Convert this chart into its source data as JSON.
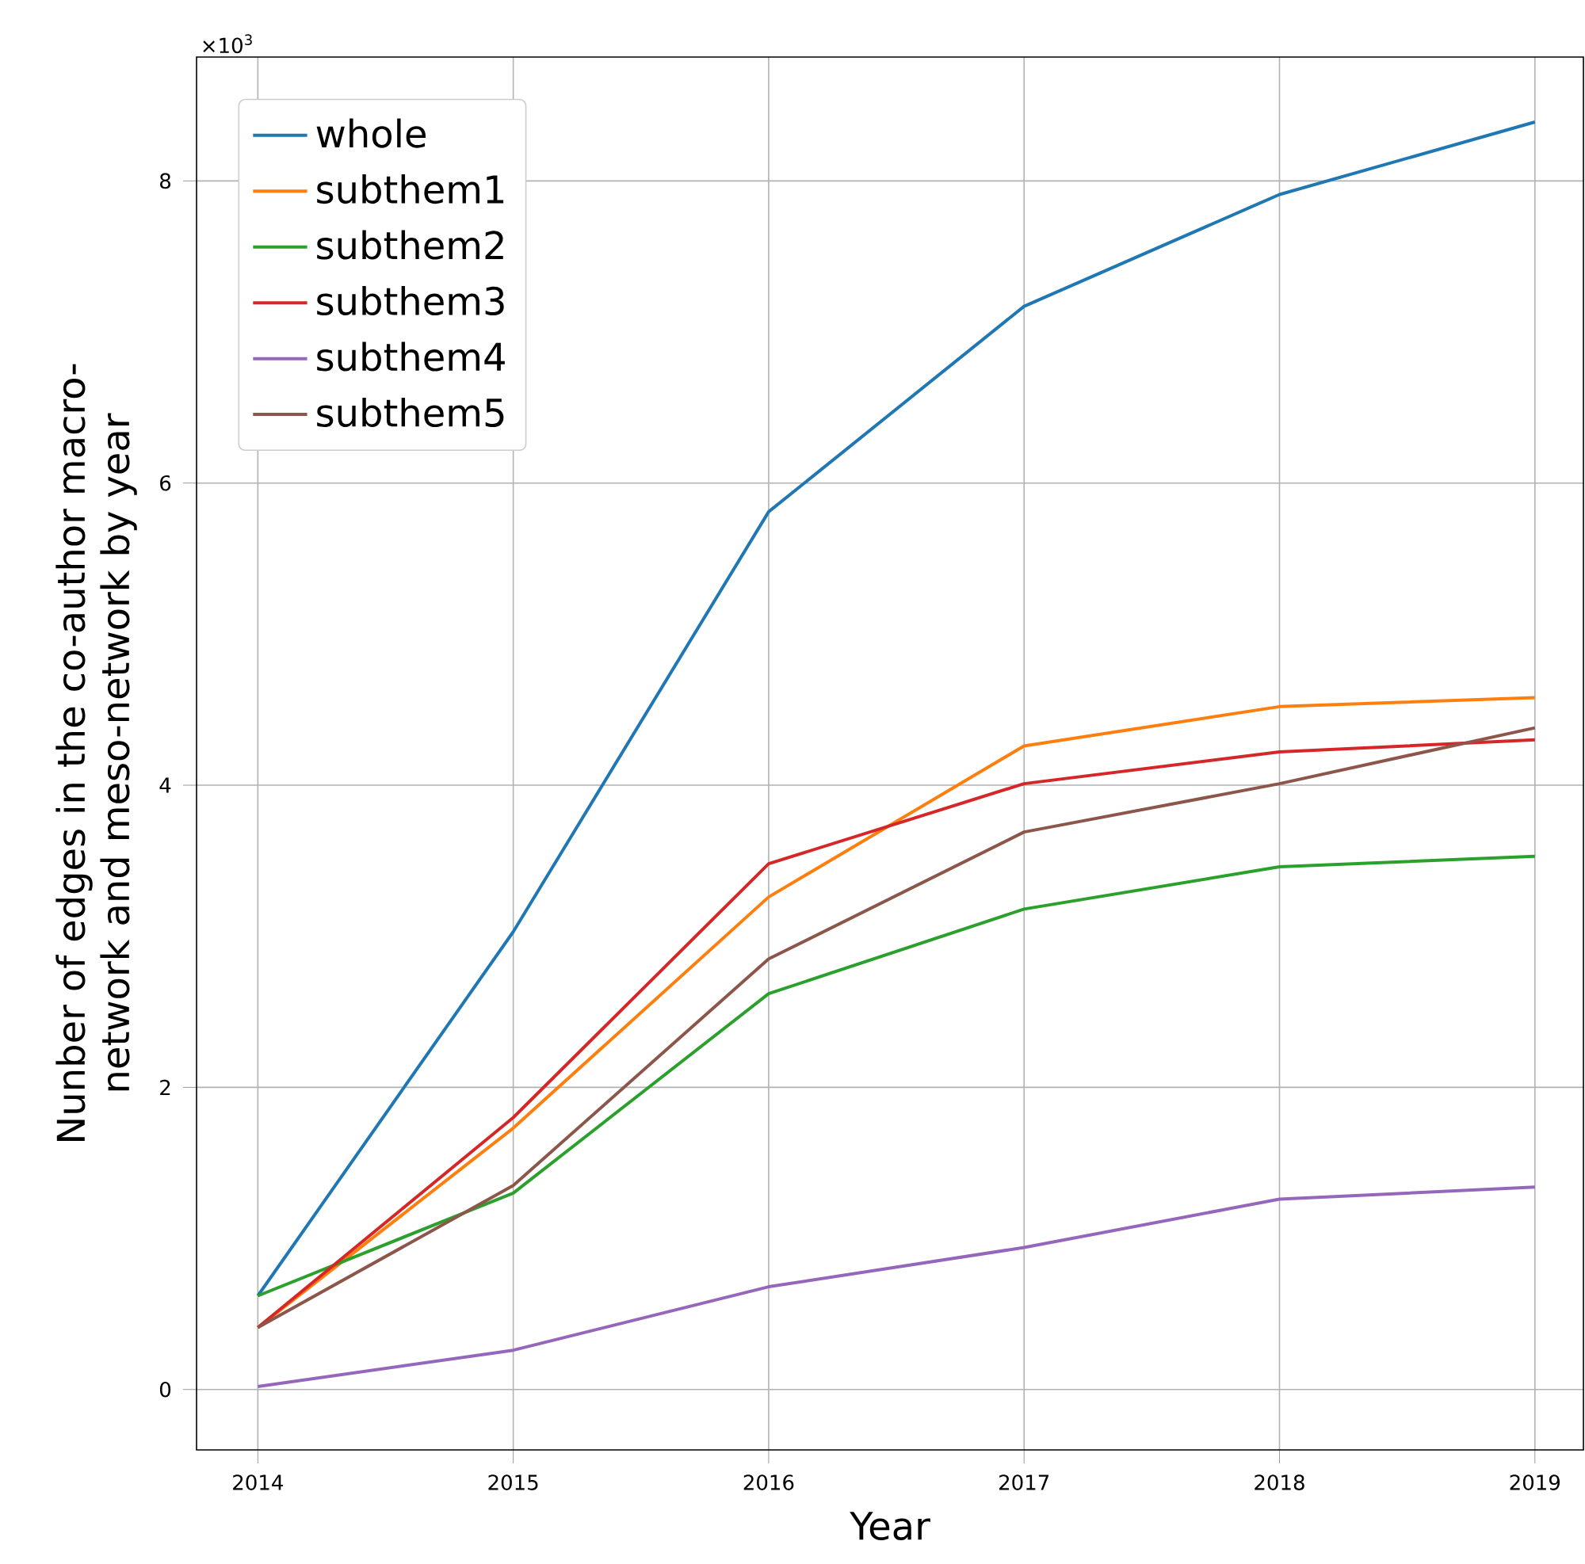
{
  "chart_data": {
    "type": "line",
    "xlabel": "Year",
    "ylabel": "Nunber of edges in the co-author macro-network and meso-network by year",
    "x": [
      2014,
      2015,
      2016,
      2017,
      2018,
      2019
    ],
    "series": [
      {
        "name": "whole",
        "color": "#1f77b4",
        "values": [
          0.62,
          3.03,
          5.81,
          7.17,
          7.91,
          8.39
        ]
      },
      {
        "name": "subthem1",
        "color": "#ff7f0e",
        "values": [
          0.41,
          1.73,
          3.26,
          4.26,
          4.52,
          4.58
        ]
      },
      {
        "name": "subthem2",
        "color": "#2ca02c",
        "values": [
          0.62,
          1.3,
          2.62,
          3.18,
          3.46,
          3.53
        ]
      },
      {
        "name": "subthem3",
        "color": "#d62728",
        "values": [
          0.41,
          1.8,
          3.48,
          4.01,
          4.22,
          4.3
        ]
      },
      {
        "name": "subthem4",
        "color": "#9467bd",
        "values": [
          0.02,
          0.26,
          0.68,
          0.94,
          1.26,
          1.34
        ]
      },
      {
        "name": "subthem5",
        "color": "#8c564b",
        "values": [
          0.41,
          1.35,
          2.85,
          3.69,
          4.01,
          4.38
        ]
      }
    ],
    "xlim": [
      2013.76,
      2019.19
    ],
    "ylim": [
      -0.4,
      8.82
    ],
    "xticks": [
      2014,
      2015,
      2016,
      2017,
      2018,
      2019
    ],
    "yticks": [
      0,
      2,
      4,
      6,
      8
    ],
    "grid": true,
    "legend": "top left",
    "marker": "none",
    "line_style": "solid",
    "annotations": [
      "×10$^{3}$"
    ]
  }
}
